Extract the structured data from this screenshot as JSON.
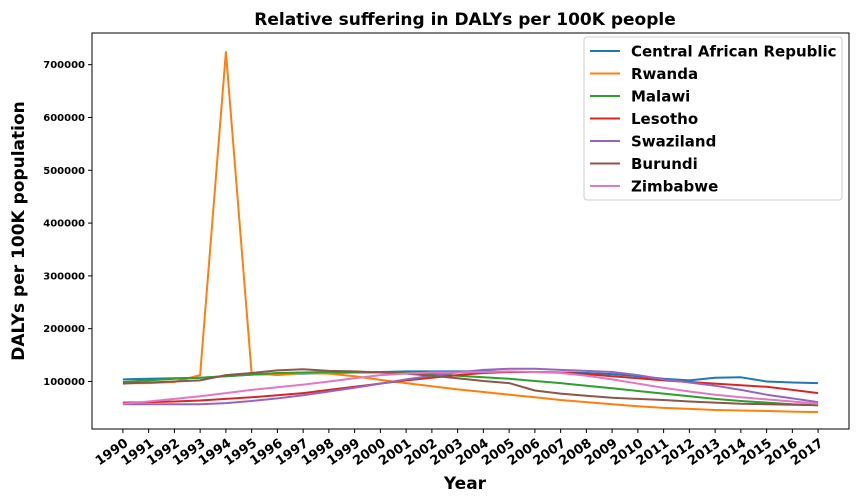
{
  "chart_data": {
    "type": "line",
    "title": "Relative suffering in DALYs per 100K people",
    "xlabel": "Year",
    "ylabel": "DALYs per 100K population",
    "x": [
      1990,
      1991,
      1992,
      1993,
      1994,
      1995,
      1996,
      1997,
      1998,
      1999,
      2000,
      2001,
      2002,
      2003,
      2004,
      2005,
      2006,
      2007,
      2008,
      2009,
      2010,
      2011,
      2012,
      2013,
      2014,
      2015,
      2016,
      2017
    ],
    "x_tick_labels": [
      "1990",
      "1991",
      "1992",
      "1993",
      "1994",
      "1995",
      "1996",
      "1997",
      "1998",
      "1999",
      "2000",
      "2001",
      "2002",
      "2003",
      "2004",
      "2005",
      "2006",
      "2007",
      "2008",
      "2009",
      "2010",
      "2011",
      "2012",
      "2013",
      "2014",
      "2015",
      "2016",
      "2017"
    ],
    "ylim": [
      10000,
      760000
    ],
    "y_ticks": [
      100000,
      200000,
      300000,
      400000,
      500000,
      600000,
      700000
    ],
    "y_tick_labels": [
      "100000",
      "200000",
      "300000",
      "400000",
      "500000",
      "600000",
      "700000"
    ],
    "grid": false,
    "legend_position": "top-right",
    "series": [
      {
        "name": "Central African Republic",
        "color": "#1f77b4",
        "values": [
          104000,
          105000,
          106000,
          107000,
          110000,
          113000,
          114000,
          115000,
          116000,
          117000,
          118000,
          119000,
          119000,
          119000,
          119000,
          118000,
          118000,
          117000,
          116000,
          114000,
          110000,
          105000,
          102000,
          107000,
          108000,
          100000,
          98000,
          97000
        ]
      },
      {
        "name": "Rwanda",
        "color": "#ff7f0e",
        "values": [
          97000,
          97000,
          99000,
          112000,
          724000,
          116000,
          112000,
          116000,
          115000,
          110000,
          103000,
          97000,
          91000,
          85000,
          80000,
          75000,
          70000,
          65000,
          61000,
          57000,
          53000,
          50000,
          48000,
          46000,
          45000,
          44000,
          43000,
          42000
        ]
      },
      {
        "name": "Malawi",
        "color": "#2ca02c",
        "values": [
          99000,
          102000,
          105000,
          107000,
          110000,
          113000,
          116000,
          117000,
          118000,
          117000,
          117000,
          116000,
          114000,
          111000,
          108000,
          105000,
          101000,
          97000,
          92000,
          87000,
          82000,
          77000,
          72000,
          67000,
          63000,
          60000,
          57000,
          55000
        ]
      },
      {
        "name": "Lesotho",
        "color": "#d62728",
        "values": [
          60000,
          61000,
          62000,
          64000,
          67000,
          70000,
          74000,
          78000,
          84000,
          90000,
          96000,
          102000,
          107000,
          112000,
          116000,
          118000,
          118000,
          117000,
          114000,
          110000,
          106000,
          102000,
          99000,
          96000,
          93000,
          90000,
          84000,
          78000
        ]
      },
      {
        "name": "Swaziland",
        "color": "#9467bd",
        "values": [
          57000,
          57000,
          57000,
          57000,
          59000,
          63000,
          68000,
          74000,
          81000,
          88000,
          96000,
          104000,
          111000,
          117000,
          122000,
          124000,
          124000,
          122000,
          120000,
          118000,
          112000,
          104000,
          98000,
          92000,
          84000,
          75000,
          68000,
          61000
        ]
      },
      {
        "name": "Burundi",
        "color": "#8c564b",
        "values": [
          96000,
          98000,
          100000,
          102000,
          112000,
          116000,
          121000,
          123000,
          120000,
          119000,
          117000,
          115000,
          111000,
          106000,
          101000,
          97000,
          83000,
          77000,
          73000,
          69000,
          67000,
          65000,
          62000,
          60000,
          58000,
          57000,
          56000,
          55000
        ]
      },
      {
        "name": "Zimbabwe",
        "color": "#e377c2",
        "values": [
          58000,
          62000,
          67000,
          72000,
          78000,
          84000,
          89000,
          94000,
          100000,
          106000,
          112000,
          115000,
          117000,
          117000,
          118000,
          119000,
          118000,
          116000,
          111000,
          104000,
          96000,
          88000,
          81000,
          75000,
          70000,
          66000,
          62000,
          58000
        ]
      }
    ]
  }
}
